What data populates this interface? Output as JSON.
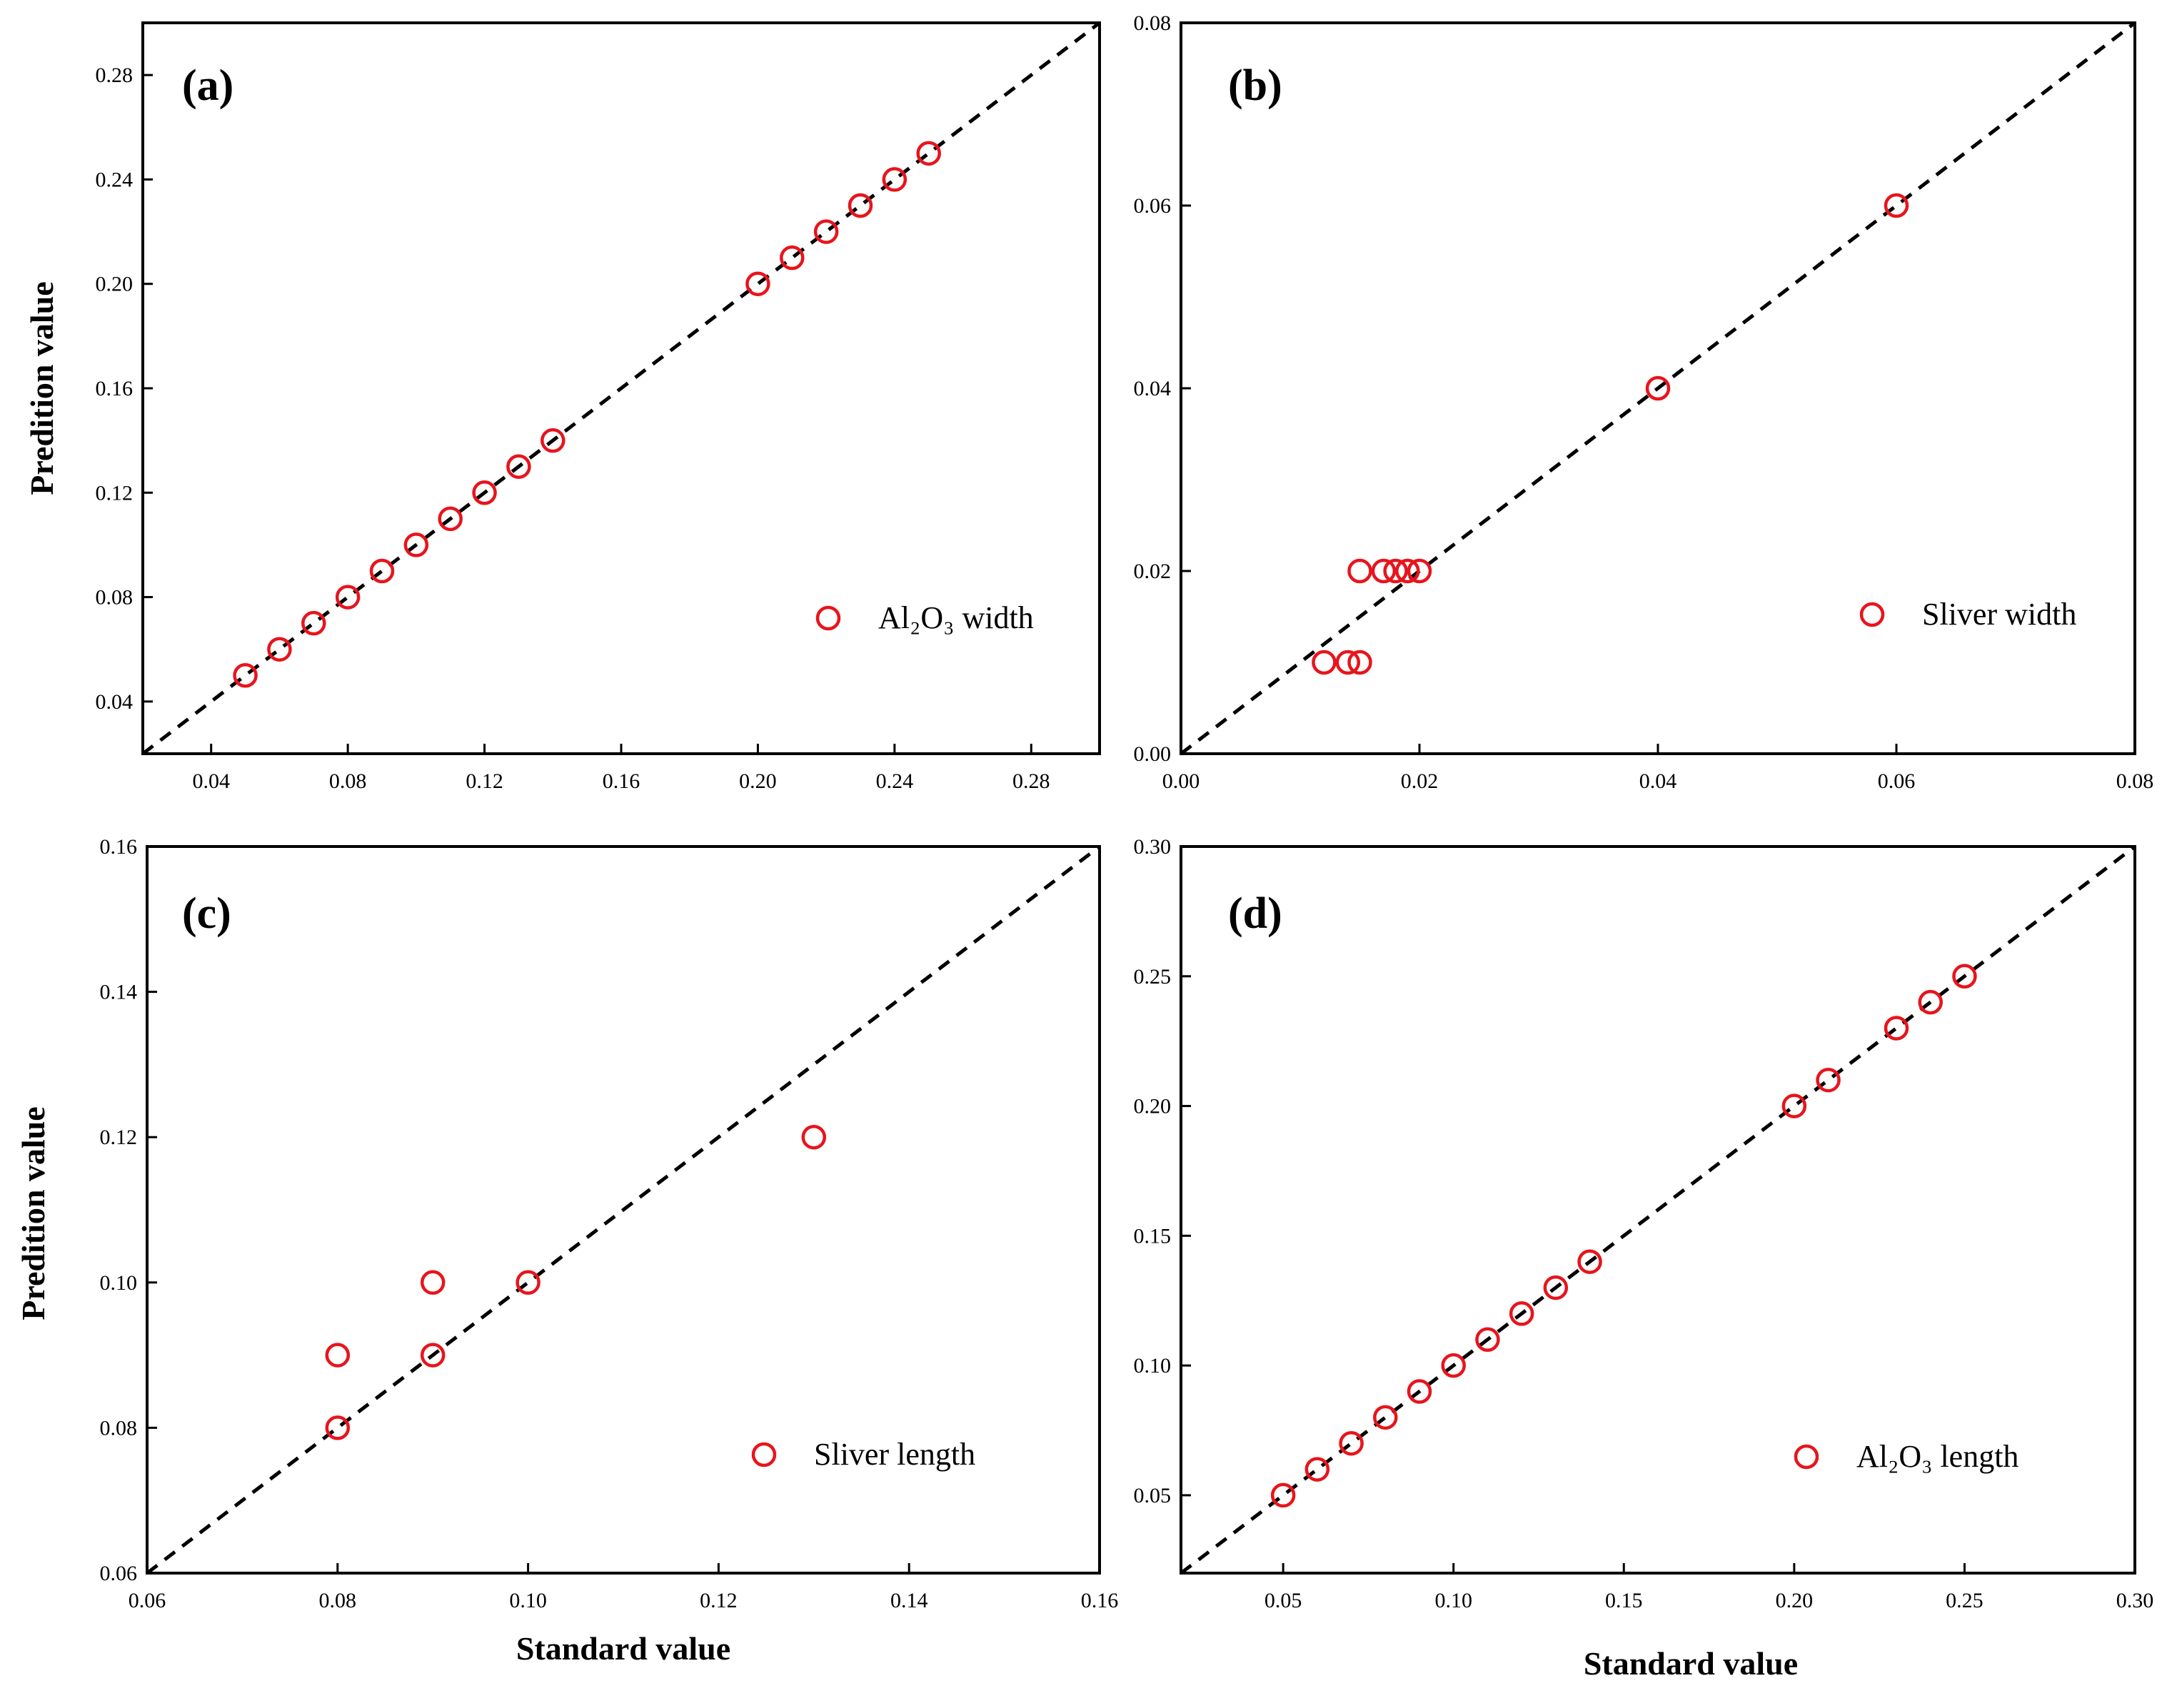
{
  "colors": {
    "marker": "#e8141c",
    "axis": "#000000",
    "line": "#000000"
  },
  "chart_data": [
    {
      "panel": "(a)",
      "type": "scatter",
      "xlabel": "",
      "ylabel": "Predition value",
      "xlim": [
        0.02,
        0.3
      ],
      "ylim": [
        0.02,
        0.3
      ],
      "xticks": [
        0.04,
        0.08,
        0.12,
        0.16,
        0.2,
        0.24,
        0.28
      ],
      "yticks": [
        0.04,
        0.08,
        0.12,
        0.16,
        0.2,
        0.24,
        0.28
      ],
      "xtick_labels": [
        "0.04",
        "0.08",
        "0.12",
        "0.16",
        "0.20",
        "0.24",
        "0.28"
      ],
      "ytick_labels": [
        "0.04",
        "0.08",
        "0.12",
        "0.16",
        "0.20",
        "0.24",
        "0.28"
      ],
      "reference_line": "y = x",
      "legend": {
        "text": "Al₂O₃ width",
        "position": "bottom-right"
      },
      "series": [
        {
          "name": "Al₂O₃ width",
          "x": [
            0.05,
            0.06,
            0.07,
            0.08,
            0.09,
            0.1,
            0.11,
            0.12,
            0.13,
            0.14,
            0.2,
            0.21,
            0.22,
            0.23,
            0.24,
            0.25
          ],
          "y": [
            0.05,
            0.06,
            0.07,
            0.08,
            0.09,
            0.1,
            0.11,
            0.12,
            0.13,
            0.14,
            0.2,
            0.21,
            0.22,
            0.23,
            0.24,
            0.25
          ]
        }
      ]
    },
    {
      "panel": "(b)",
      "type": "scatter",
      "xlabel": "",
      "ylabel": "",
      "xlim": [
        0.0,
        0.08
      ],
      "ylim": [
        0.0,
        0.08
      ],
      "xticks": [
        0.0,
        0.02,
        0.04,
        0.06,
        0.08
      ],
      "yticks": [
        0.0,
        0.02,
        0.04,
        0.06,
        0.08
      ],
      "xtick_labels": [
        "0.00",
        "0.02",
        "0.04",
        "0.06",
        "0.08"
      ],
      "ytick_labels": [
        "0.00",
        "0.02",
        "0.04",
        "0.06",
        "0.08"
      ],
      "reference_line": "y = x",
      "legend": {
        "text": "Sliver width",
        "position": "bottom-right"
      },
      "series": [
        {
          "name": "Sliver width",
          "x": [
            0.012,
            0.014,
            0.015,
            0.015,
            0.017,
            0.018,
            0.019,
            0.02,
            0.04,
            0.06
          ],
          "y": [
            0.01,
            0.01,
            0.01,
            0.02,
            0.02,
            0.02,
            0.02,
            0.02,
            0.04,
            0.06
          ]
        }
      ]
    },
    {
      "panel": "(c)",
      "type": "scatter",
      "xlabel": "Standard value",
      "ylabel": "Predition value",
      "xlim": [
        0.06,
        0.16
      ],
      "ylim": [
        0.06,
        0.16
      ],
      "xticks": [
        0.06,
        0.08,
        0.1,
        0.12,
        0.14,
        0.16
      ],
      "yticks": [
        0.06,
        0.08,
        0.1,
        0.12,
        0.14,
        0.16
      ],
      "xtick_labels": [
        "0.06",
        "0.08",
        "0.10",
        "0.12",
        "0.14",
        "0.16"
      ],
      "ytick_labels": [
        "0.06",
        "0.08",
        "0.10",
        "0.12",
        "0.14",
        "0.16"
      ],
      "reference_line": "y = x",
      "legend": {
        "text": "Sliver length",
        "position": "bottom-right"
      },
      "series": [
        {
          "name": "Sliver length",
          "x": [
            0.08,
            0.08,
            0.09,
            0.09,
            0.1,
            0.13
          ],
          "y": [
            0.08,
            0.09,
            0.09,
            0.1,
            0.1,
            0.12
          ]
        }
      ]
    },
    {
      "panel": "(d)",
      "type": "scatter",
      "xlabel": "Standard value",
      "ylabel": "",
      "xlim": [
        0.02,
        0.3
      ],
      "ylim": [
        0.02,
        0.3
      ],
      "xticks": [
        0.05,
        0.1,
        0.15,
        0.2,
        0.25,
        0.3
      ],
      "yticks": [
        0.05,
        0.1,
        0.15,
        0.2,
        0.25,
        0.3
      ],
      "xtick_labels": [
        "0.05",
        "0.10",
        "0.15",
        "0.20",
        "0.25",
        "0.30"
      ],
      "ytick_labels": [
        "0.05",
        "0.10",
        "0.15",
        "0.20",
        "0.25",
        "0.30"
      ],
      "reference_line": "y = x",
      "legend": {
        "text": "Al₂O₃ length",
        "position": "bottom-right"
      },
      "series": [
        {
          "name": "Al₂O₃ length",
          "x": [
            0.05,
            0.06,
            0.07,
            0.08,
            0.09,
            0.1,
            0.11,
            0.12,
            0.13,
            0.14,
            0.2,
            0.21,
            0.23,
            0.24,
            0.25
          ],
          "y": [
            0.05,
            0.06,
            0.07,
            0.08,
            0.09,
            0.1,
            0.11,
            0.12,
            0.13,
            0.14,
            0.2,
            0.21,
            0.23,
            0.24,
            0.25
          ]
        }
      ]
    }
  ]
}
